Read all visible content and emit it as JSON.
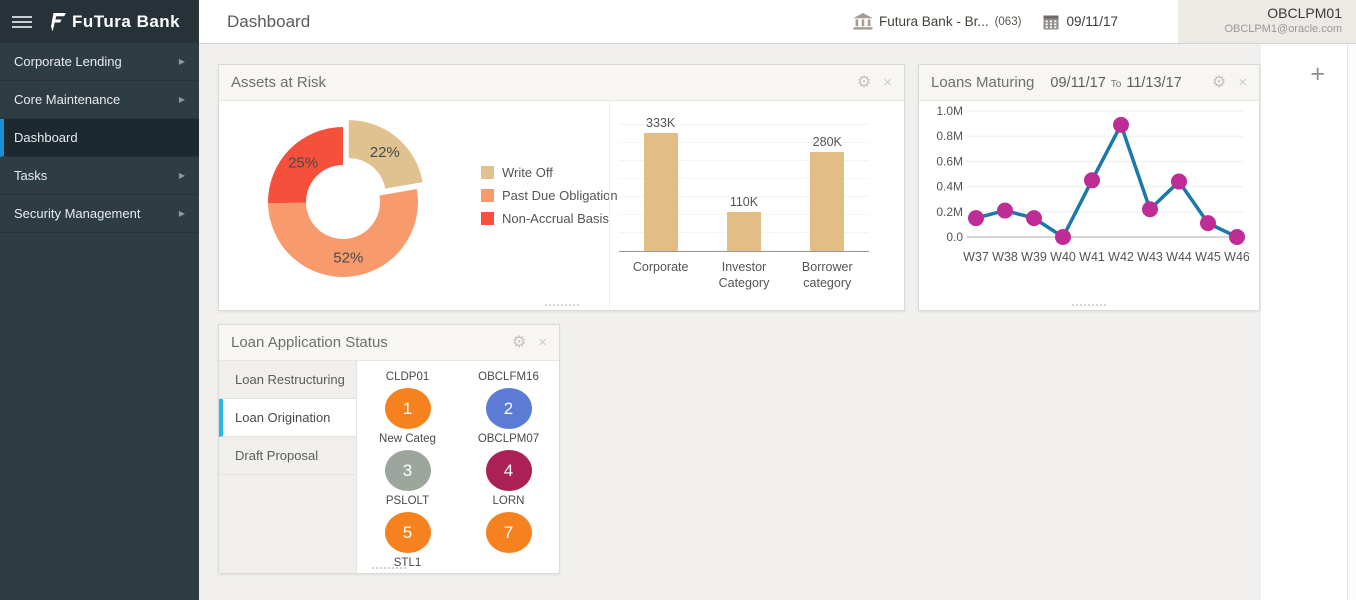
{
  "header": {
    "app_title": "FuTura Bank",
    "page_title": "Dashboard",
    "branch": "Futura Bank - Br...",
    "branch_code": "(063)",
    "date": "09/11/17",
    "user": {
      "id": "OBCLPM01",
      "email": "OBCLPM1@oracle.com"
    }
  },
  "sidebar": {
    "items": [
      {
        "label": "Corporate Lending",
        "expandable": true,
        "active": false
      },
      {
        "label": "Core Maintenance",
        "expandable": true,
        "active": false
      },
      {
        "label": "Dashboard",
        "expandable": false,
        "active": true
      },
      {
        "label": "Tasks",
        "expandable": true,
        "active": false
      },
      {
        "label": "Security Management",
        "expandable": true,
        "active": false
      }
    ]
  },
  "widgets": {
    "assets_at_risk": {
      "title": "Assets at Risk"
    },
    "loans_maturing": {
      "title": "Loans Maturing",
      "date_from": "09/11/17",
      "to_label": "To",
      "date_to": "11/13/17"
    },
    "loan_application_status": {
      "title": "Loan Application Status",
      "tabs": [
        {
          "label": "Loan Restructuring",
          "active": false
        },
        {
          "label": "Loan Origination",
          "active": true
        },
        {
          "label": "Draft Proposal",
          "active": false
        }
      ],
      "categories": [
        {
          "label": "CLDP01",
          "count": "1",
          "color": "#F5821F"
        },
        {
          "label": "OBCLFM16",
          "count": "2",
          "color": "#5B7BD5"
        },
        {
          "label": "New Categ",
          "count": "3",
          "color": "#9CA69C"
        },
        {
          "label": "OBCLPM07",
          "count": "4",
          "color": "#AB2155"
        },
        {
          "label": "PSLOLT",
          "count": "5",
          "color": "#F5821F"
        },
        {
          "label": "LORN",
          "count": "7",
          "color": "#F5821F"
        }
      ],
      "overflow_category": "STL1"
    },
    "add_widget_label": "+"
  },
  "chart_data": [
    {
      "id": "assets_at_risk_donut",
      "type": "pie",
      "donut": true,
      "labels": [
        "Write Off",
        "Past Due Obligation",
        "Non-Accrual Basis"
      ],
      "values": [
        22,
        52,
        25
      ],
      "value_labels": [
        "22%",
        "52%",
        "25%"
      ],
      "colors": [
        "#DFC290",
        "#F89B6C",
        "#F4503C"
      ],
      "exploded_slice": 0,
      "legend_position": "right"
    },
    {
      "id": "assets_at_risk_bars",
      "type": "bar",
      "categories": [
        "Corporate",
        "Investor Category",
        "Borrower category"
      ],
      "values": [
        333000,
        110000,
        280000
      ],
      "value_labels": [
        "333K",
        "110K",
        "280K"
      ],
      "color": "#E2BD85",
      "ylim": [
        0,
        400000
      ],
      "grid": true
    },
    {
      "id": "loans_maturing_line",
      "type": "line",
      "x": [
        "W37",
        "W38",
        "W39",
        "W40",
        "W41",
        "W42",
        "W43",
        "W44",
        "W45",
        "W46"
      ],
      "values": [
        150000,
        210000,
        150000,
        0,
        450000,
        890000,
        220000,
        440000,
        110000,
        0
      ],
      "ytick_labels": [
        "1.0M",
        "0.8M",
        "0.6M",
        "0.4M",
        "0.2M",
        "0.0"
      ],
      "ylim": [
        0,
        1000000
      ],
      "line_color": "#1B78A8",
      "marker_color": "#C02C96",
      "grid": true
    }
  ]
}
